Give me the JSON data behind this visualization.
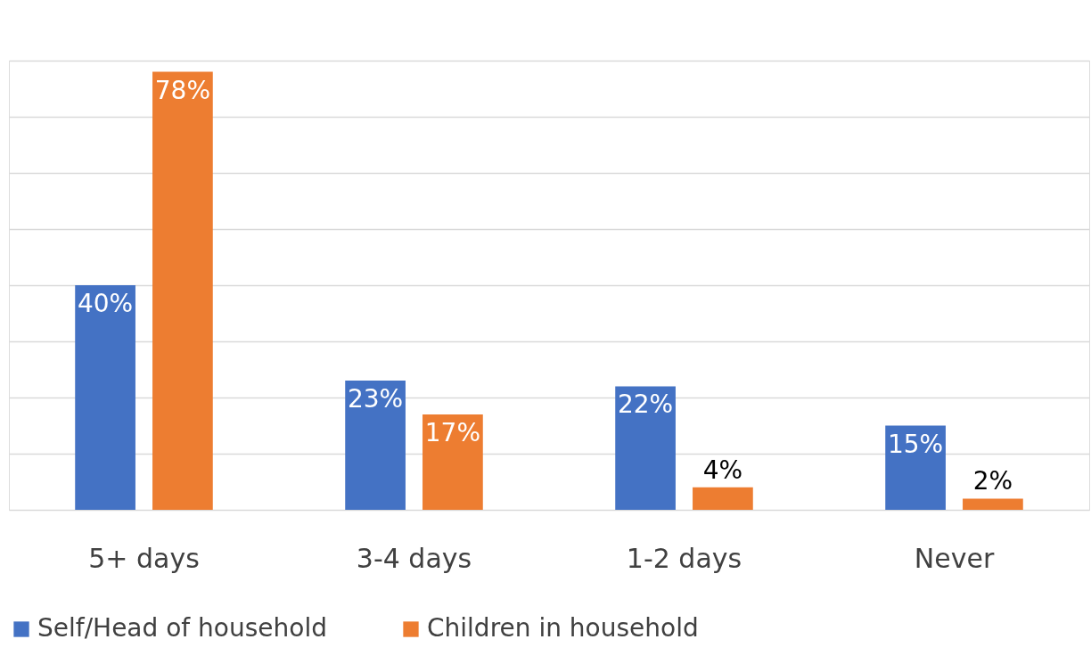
{
  "chart_data": {
    "type": "bar",
    "categories": [
      "5+ days",
      "3-4 days",
      "1-2 days",
      "Never"
    ],
    "series": [
      {
        "name": "Self/Head of household",
        "color": "#4472c4",
        "values": [
          40,
          23,
          22,
          15
        ],
        "value_labels": [
          "40%",
          "23%",
          "22%",
          "15%"
        ]
      },
      {
        "name": "Children in household",
        "color": "#ed7d31",
        "values": [
          78,
          17,
          4,
          2
        ],
        "value_labels": [
          "78%",
          "17%",
          "4%",
          "2%"
        ]
      }
    ],
    "ylim": [
      0,
      80
    ],
    "yticks": [
      {
        "value": 0,
        "label": null
      },
      {
        "value": 10,
        "label": null
      },
      {
        "value": 20,
        "label": null
      },
      {
        "value": 30,
        "label": null
      },
      {
        "value": 40,
        "label": null
      },
      {
        "value": 50,
        "label": null
      },
      {
        "value": 60,
        "label": null
      },
      {
        "value": 70,
        "label": null
      },
      {
        "value": 80,
        "label": null
      }
    ],
    "tick_labels": "x",
    "grid": "y",
    "legend": "bottom"
  }
}
